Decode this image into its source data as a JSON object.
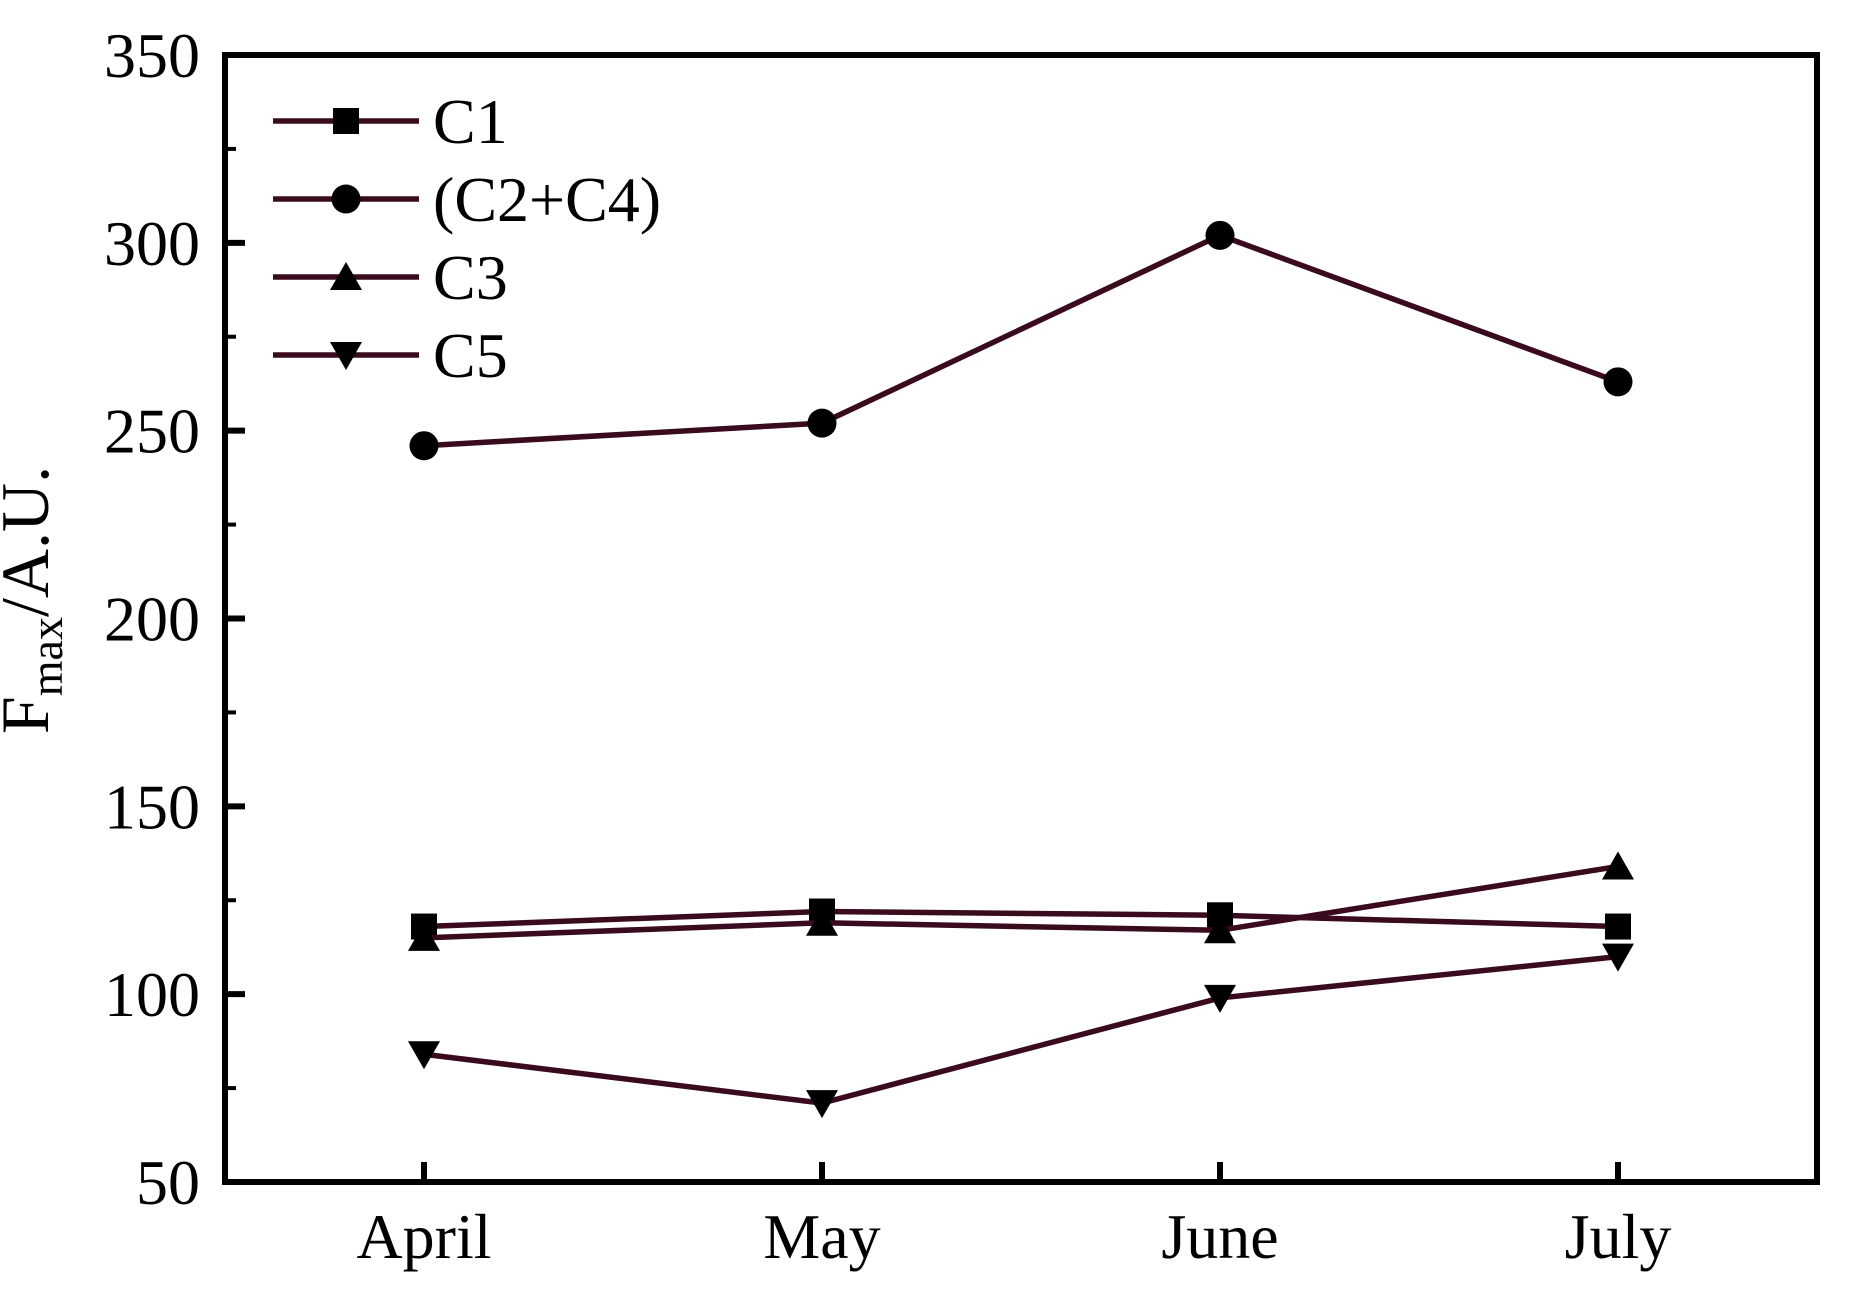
{
  "chart_data": {
    "type": "line",
    "title": "",
    "xlabel": "",
    "ylabel_parts": {
      "main": "F",
      "sub": "max",
      "rest": "/A.U."
    },
    "categories": [
      "April",
      "May",
      "June",
      "July"
    ],
    "series": [
      {
        "name": "C1",
        "marker": "square",
        "values": [
          118,
          122,
          121,
          118
        ]
      },
      {
        "name": "(C2+C4)",
        "marker": "circle",
        "values": [
          246,
          252,
          302,
          263
        ]
      },
      {
        "name": "C3",
        "marker": "triangle-up",
        "values": [
          115,
          119,
          117,
          134
        ]
      },
      {
        "name": "C5",
        "marker": "triangle-down",
        "values": [
          84,
          71,
          99,
          110
        ]
      }
    ],
    "ylim": [
      50,
      350
    ],
    "ytick_major": 50,
    "ytick_minor": 25,
    "ytick_labels": [
      "50",
      "100",
      "150",
      "200",
      "250",
      "300",
      "350"
    ],
    "grid": false,
    "legend_position": "top-left",
    "frame": "full-box",
    "ticks_direction": "in",
    "colors": {
      "line": "#3a0a1f",
      "marker": "#000000",
      "axis": "#000000",
      "text": "#000000",
      "background": "#ffffff"
    }
  }
}
